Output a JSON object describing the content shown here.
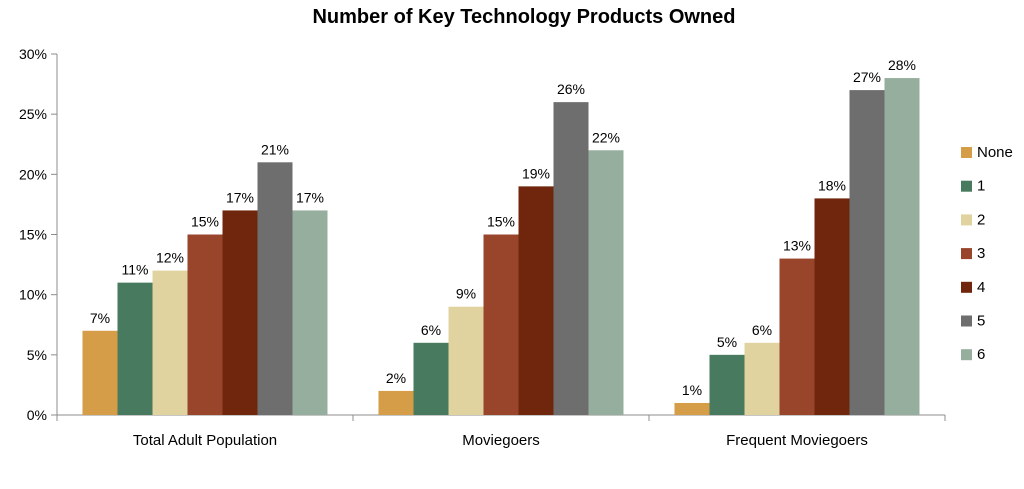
{
  "chart_data": {
    "type": "bar",
    "title": "Number of Key Technology Products Owned",
    "xlabel": "",
    "ylabel": "",
    "categories": [
      "Total Adult Population",
      "Moviegoers",
      "Frequent Moviegoers"
    ],
    "ylim": [
      0,
      30
    ],
    "yticks": [
      0,
      5,
      10,
      15,
      20,
      25,
      30
    ],
    "ytick_labels": [
      "0%",
      "5%",
      "10%",
      "15%",
      "20%",
      "25%",
      "30%"
    ],
    "value_suffix": "%",
    "grid": false,
    "legend_position": "right",
    "series": [
      {
        "name": "None",
        "color": "#D59D47",
        "values": [
          7,
          2,
          1
        ]
      },
      {
        "name": "1",
        "color": "#477A5E",
        "values": [
          11,
          6,
          5
        ]
      },
      {
        "name": "2",
        "color": "#E0D3A0",
        "values": [
          12,
          9,
          6
        ]
      },
      {
        "name": "3",
        "color": "#99452C",
        "values": [
          15,
          15,
          13
        ]
      },
      {
        "name": "4",
        "color": "#70260D",
        "values": [
          17,
          19,
          18
        ]
      },
      {
        "name": "5",
        "color": "#6E6E6E",
        "values": [
          21,
          26,
          27
        ]
      },
      {
        "name": "6",
        "color": "#96AE9E",
        "values": [
          17,
          22,
          28
        ]
      }
    ]
  }
}
